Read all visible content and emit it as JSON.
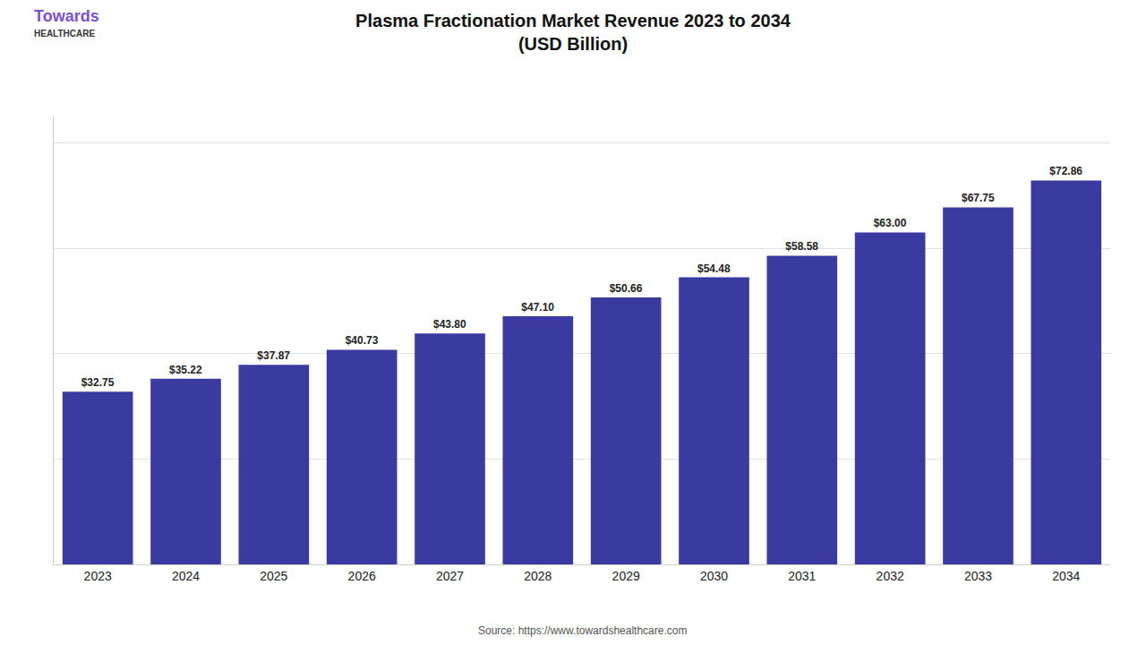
{
  "chart_data": {
    "type": "bar",
    "title": "Plasma Fractionation Market Revenue 2023 to 2034\n(USD Billion)",
    "categories": [
      "2023",
      "2024",
      "2025",
      "2026",
      "2027",
      "2028",
      "2029",
      "2030",
      "2031",
      "2032",
      "2033",
      "2034"
    ],
    "values": [
      32.75,
      35.22,
      37.87,
      40.73,
      43.8,
      47.1,
      50.66,
      54.48,
      58.58,
      63.0,
      67.75,
      72.86
    ],
    "value_labels": [
      "$32.75",
      "$35.22",
      "$37.87",
      "$40.73",
      "$43.80",
      "$47.10",
      "$50.66",
      "$54.48",
      "$58.58",
      "$63.00",
      "$67.75",
      "$72.86"
    ],
    "data_labels": true,
    "color": "#3b3aa0",
    "ylim": [
      0,
      85
    ],
    "yticks": [
      20,
      40,
      60,
      80
    ],
    "tick_labels": "x",
    "grid": true,
    "annotations": [
      "Towards",
      "HEALTHCARE",
      "Source: https://www.towardshealthcare.com"
    ]
  }
}
